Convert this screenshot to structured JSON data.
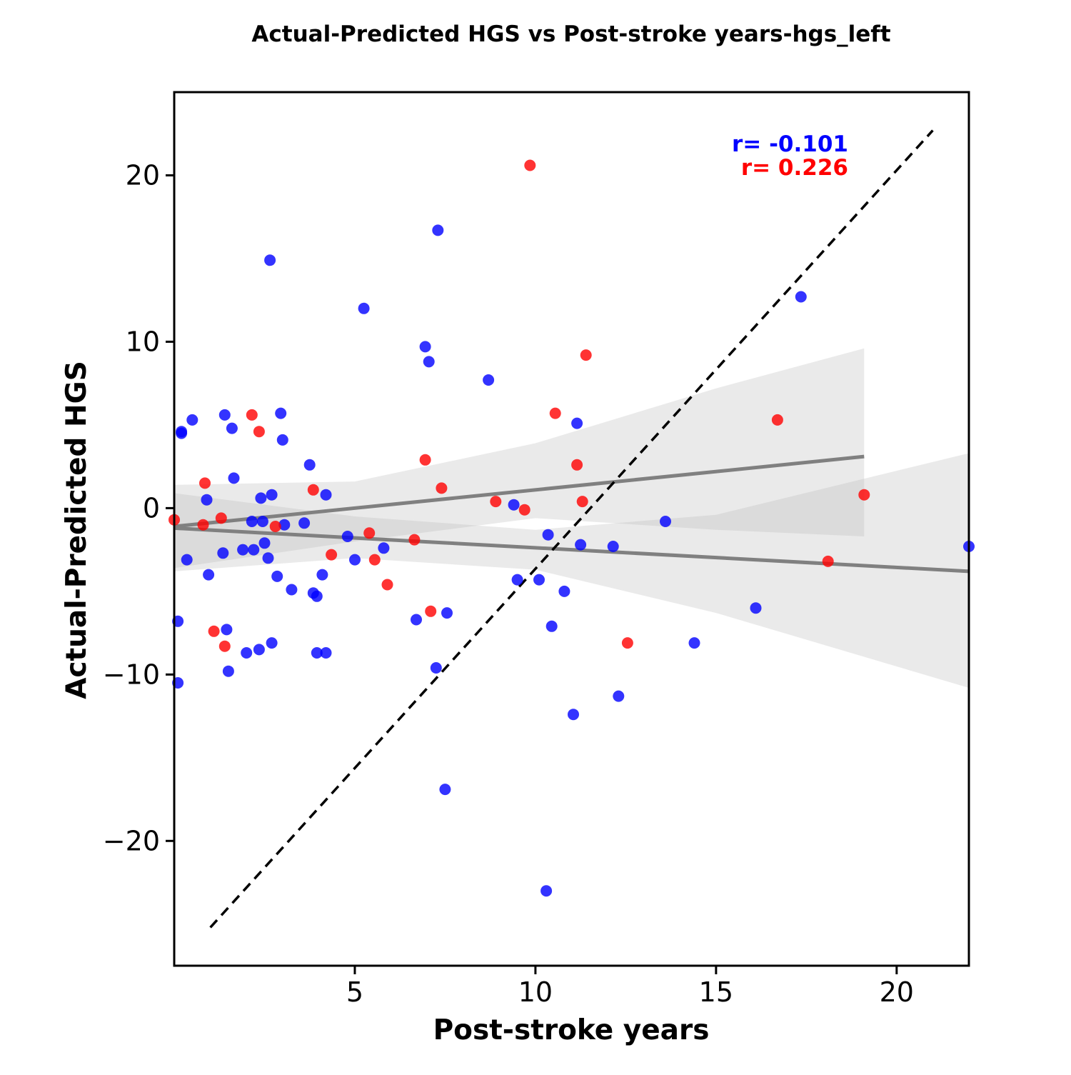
{
  "chart_data": {
    "type": "scatter",
    "title": "Actual-Predicted HGS vs Post-stroke years-hgs_left",
    "xlabel": "Post-stroke years",
    "ylabel": "Actual-Predicted HGS",
    "xlim": [
      0,
      22
    ],
    "ylim": [
      -27.5,
      25
    ],
    "xticks": [
      5,
      10,
      15,
      20
    ],
    "yticks": [
      20,
      10,
      0,
      -10,
      -20
    ],
    "xtick_labels": [
      "5",
      "10",
      "15",
      "20"
    ],
    "ytick_labels": [
      "20",
      "10",
      "0",
      "−10",
      "−20"
    ],
    "grid": false,
    "annotations": [
      {
        "text": "r= -0.101",
        "color": "#0000ff"
      },
      {
        "text": "r= 0.226",
        "color": "#ff0000"
      }
    ],
    "identity_line": {
      "x": [
        1.0,
        21.0
      ],
      "y": [
        -25.2,
        22.7
      ],
      "style": "dashed",
      "color": "#000000"
    },
    "series": [
      {
        "color": "#0000ff",
        "fit": {
          "x": [
            0,
            22
          ],
          "y": [
            -1.2,
            -3.8
          ]
        },
        "ci_band": {
          "x": [
            0,
            5,
            10,
            15,
            22
          ],
          "upper": [
            0.9,
            -0.5,
            -1.3,
            -0.4,
            3.3
          ],
          "lower": [
            -3.8,
            -3.0,
            -3.7,
            -6.3,
            -10.8
          ]
        },
        "points": [
          {
            "x": 0.1,
            "y": -6.8
          },
          {
            "x": 0.1,
            "y": -10.5
          },
          {
            "x": 0.2,
            "y": 4.5
          },
          {
            "x": 0.2,
            "y": 4.6
          },
          {
            "x": 0.35,
            "y": -3.1
          },
          {
            "x": 0.5,
            "y": 5.3
          },
          {
            "x": 0.9,
            "y": 0.5
          },
          {
            "x": 0.95,
            "y": -4.0
          },
          {
            "x": 1.35,
            "y": -2.7
          },
          {
            "x": 1.4,
            "y": 5.6
          },
          {
            "x": 1.45,
            "y": -7.3
          },
          {
            "x": 1.5,
            "y": -9.8
          },
          {
            "x": 1.6,
            "y": 4.8
          },
          {
            "x": 1.65,
            "y": 1.8
          },
          {
            "x": 1.9,
            "y": -2.5
          },
          {
            "x": 2.0,
            "y": -8.7
          },
          {
            "x": 2.15,
            "y": -0.8
          },
          {
            "x": 2.2,
            "y": -2.5
          },
          {
            "x": 2.35,
            "y": -8.5
          },
          {
            "x": 2.4,
            "y": 0.6
          },
          {
            "x": 2.45,
            "y": -0.8
          },
          {
            "x": 2.5,
            "y": -2.1
          },
          {
            "x": 2.6,
            "y": -3.0
          },
          {
            "x": 2.65,
            "y": 14.9
          },
          {
            "x": 2.7,
            "y": 0.8
          },
          {
            "x": 2.7,
            "y": -8.1
          },
          {
            "x": 2.85,
            "y": -4.1
          },
          {
            "x": 2.95,
            "y": 5.7
          },
          {
            "x": 3.0,
            "y": 4.1
          },
          {
            "x": 3.05,
            "y": -1.0
          },
          {
            "x": 3.25,
            "y": -4.9
          },
          {
            "x": 3.6,
            "y": -0.9
          },
          {
            "x": 3.75,
            "y": 2.6
          },
          {
            "x": 3.85,
            "y": -5.1
          },
          {
            "x": 3.95,
            "y": -5.3
          },
          {
            "x": 3.95,
            "y": -8.7
          },
          {
            "x": 4.1,
            "y": -4.0
          },
          {
            "x": 4.2,
            "y": 0.8
          },
          {
            "x": 4.2,
            "y": -8.7
          },
          {
            "x": 4.8,
            "y": -1.7
          },
          {
            "x": 5.0,
            "y": -3.1
          },
          {
            "x": 5.25,
            "y": 12.0
          },
          {
            "x": 5.8,
            "y": -2.4
          },
          {
            "x": 6.7,
            "y": -6.7
          },
          {
            "x": 6.95,
            "y": 9.7
          },
          {
            "x": 7.05,
            "y": 8.8
          },
          {
            "x": 7.25,
            "y": -9.6
          },
          {
            "x": 7.3,
            "y": 16.7
          },
          {
            "x": 7.5,
            "y": -16.9
          },
          {
            "x": 7.55,
            "y": -6.3
          },
          {
            "x": 8.7,
            "y": 7.7
          },
          {
            "x": 9.4,
            "y": 0.2
          },
          {
            "x": 9.5,
            "y": -4.3
          },
          {
            "x": 10.1,
            "y": -4.3
          },
          {
            "x": 10.3,
            "y": -23.0
          },
          {
            "x": 10.35,
            "y": -1.6
          },
          {
            "x": 10.45,
            "y": -7.1
          },
          {
            "x": 10.8,
            "y": -5.0
          },
          {
            "x": 11.05,
            "y": -12.4
          },
          {
            "x": 11.15,
            "y": 5.1
          },
          {
            "x": 11.25,
            "y": -2.2
          },
          {
            "x": 12.15,
            "y": -2.3
          },
          {
            "x": 12.3,
            "y": -11.3
          },
          {
            "x": 13.6,
            "y": -0.8
          },
          {
            "x": 14.4,
            "y": -8.1
          },
          {
            "x": 16.1,
            "y": -6.0
          },
          {
            "x": 17.35,
            "y": 12.7
          },
          {
            "x": 22.0,
            "y": -2.3
          }
        ]
      },
      {
        "color": "#ff0000",
        "fit": {
          "x": [
            0,
            19.1
          ],
          "y": [
            -1.1,
            3.1
          ]
        },
        "ci_band": {
          "x": [
            0,
            5,
            10,
            15,
            19.1
          ],
          "upper": [
            1.4,
            1.6,
            3.9,
            7.2,
            9.6
          ],
          "lower": [
            -3.6,
            -2.0,
            -0.6,
            -1.3,
            -1.7
          ]
        },
        "points": [
          {
            "x": 0.0,
            "y": -0.7
          },
          {
            "x": 0.8,
            "y": -1.0
          },
          {
            "x": 0.85,
            "y": 1.5
          },
          {
            "x": 1.1,
            "y": -7.4
          },
          {
            "x": 1.3,
            "y": -0.6
          },
          {
            "x": 1.4,
            "y": -8.3
          },
          {
            "x": 2.15,
            "y": 5.6
          },
          {
            "x": 2.35,
            "y": 4.6
          },
          {
            "x": 2.8,
            "y": -1.1
          },
          {
            "x": 3.85,
            "y": 1.1
          },
          {
            "x": 4.35,
            "y": -2.8
          },
          {
            "x": 5.4,
            "y": -1.5
          },
          {
            "x": 5.55,
            "y": -3.1
          },
          {
            "x": 5.9,
            "y": -4.6
          },
          {
            "x": 6.65,
            "y": -1.9
          },
          {
            "x": 6.95,
            "y": 2.9
          },
          {
            "x": 7.1,
            "y": -6.2
          },
          {
            "x": 7.4,
            "y": 1.2
          },
          {
            "x": 8.9,
            "y": 0.4
          },
          {
            "x": 9.7,
            "y": -0.1
          },
          {
            "x": 9.85,
            "y": 20.6
          },
          {
            "x": 10.55,
            "y": 5.7
          },
          {
            "x": 11.15,
            "y": 2.6
          },
          {
            "x": 11.3,
            "y": 0.4
          },
          {
            "x": 11.4,
            "y": 9.2
          },
          {
            "x": 12.55,
            "y": -8.1
          },
          {
            "x": 16.7,
            "y": 5.3
          },
          {
            "x": 18.1,
            "y": -3.2
          },
          {
            "x": 19.1,
            "y": 0.8
          }
        ]
      }
    ]
  }
}
